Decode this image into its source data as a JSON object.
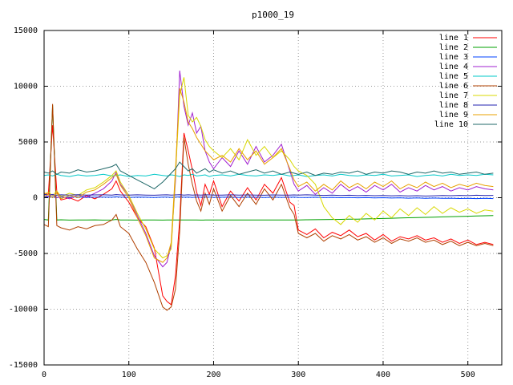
{
  "chart_data": {
    "type": "line",
    "title": "p1000_19",
    "xlabel": "",
    "ylabel": "",
    "xlim": [
      0,
      540
    ],
    "ylim": [
      -15000,
      15000
    ],
    "xticks": [
      0,
      100,
      200,
      300,
      400,
      500
    ],
    "yticks": [
      -15000,
      -10000,
      -5000,
      0,
      5000,
      10000,
      15000
    ],
    "grid": true,
    "legend_position": "top-right-inside",
    "x": [
      0,
      5,
      10,
      15,
      20,
      30,
      40,
      50,
      60,
      70,
      80,
      85,
      90,
      100,
      110,
      120,
      130,
      140,
      145,
      150,
      155,
      160,
      165,
      170,
      175,
      180,
      185,
      190,
      195,
      200,
      210,
      220,
      230,
      240,
      250,
      260,
      270,
      280,
      290,
      295,
      300,
      310,
      320,
      330,
      340,
      350,
      360,
      370,
      380,
      390,
      400,
      410,
      420,
      430,
      440,
      450,
      460,
      470,
      480,
      490,
      500,
      510,
      520,
      530
    ],
    "series": [
      {
        "name": "line 1",
        "color": "#ff0000",
        "values": [
          400,
          300,
          6500,
          500,
          -200,
          0,
          -300,
          200,
          -100,
          300,
          800,
          1500,
          600,
          -400,
          -1800,
          -2600,
          -4500,
          -8800,
          -9300,
          -9600,
          -7000,
          -2000,
          5800,
          4200,
          2500,
          500,
          -700,
          1200,
          300,
          1500,
          -800,
          600,
          -300,
          900,
          -200,
          1200,
          400,
          1800,
          -400,
          -700,
          -2900,
          -3300,
          -2800,
          -3600,
          -3100,
          -3400,
          -2900,
          -3500,
          -3200,
          -3800,
          -3300,
          -3900,
          -3500,
          -3700,
          -3400,
          -3800,
          -3600,
          -4000,
          -3700,
          -4100,
          -3800,
          -4200,
          -4000,
          -4200
        ]
      },
      {
        "name": "line 2",
        "color": "#00a000",
        "values": [
          -1950,
          -2000,
          8300,
          -2000,
          -1980,
          -2010,
          -1990,
          -2000,
          -1985,
          -2005,
          -1995,
          -1950,
          -2000,
          -1990,
          -2010,
          -2000,
          -1995,
          -2005,
          -2000,
          -1990,
          -2000,
          -1995,
          -2000,
          -1990,
          -2000,
          -1995,
          -2005,
          -2000,
          -1990,
          -2000,
          -1995,
          -2000,
          -1990,
          -2000,
          -1995,
          -2000,
          -1990,
          -2000,
          -1995,
          -2000,
          -1990,
          -1980,
          -1970,
          -1960,
          -1950,
          -1940,
          -1930,
          -1920,
          -1900,
          -1880,
          -1860,
          -1840,
          -1820,
          -1800,
          -1780,
          -1760,
          -1740,
          -1720,
          -1700,
          -1680,
          -1660,
          -1640,
          -1620,
          -1600
        ]
      },
      {
        "name": "line 3",
        "color": "#0040ff",
        "values": [
          100,
          50,
          80,
          20,
          60,
          40,
          70,
          30,
          50,
          60,
          40,
          80,
          50,
          30,
          60,
          40,
          20,
          50,
          60,
          30,
          50,
          70,
          40,
          60,
          30,
          50,
          40,
          60,
          50,
          30,
          40,
          60,
          30,
          50,
          40,
          20,
          50,
          30,
          40,
          50,
          30,
          20,
          40,
          10,
          30,
          0,
          20,
          -10,
          10,
          -20,
          0,
          -30,
          -10,
          -40,
          -20,
          -50,
          -30,
          -60,
          -40,
          -70,
          -50,
          -80,
          -60,
          -80
        ]
      },
      {
        "name": "line 4",
        "color": "#a020d0",
        "values": [
          200,
          100,
          300,
          0,
          150,
          -100,
          250,
          50,
          400,
          800,
          1500,
          2300,
          1200,
          200,
          -1600,
          -3200,
          -5200,
          -6200,
          -5800,
          -4200,
          1500,
          11400,
          8200,
          6500,
          7600,
          5800,
          6400,
          4200,
          3200,
          2600,
          3600,
          2800,
          4200,
          3000,
          4600,
          3200,
          3800,
          4800,
          2400,
          1200,
          600,
          1100,
          300,
          900,
          400,
          1200,
          600,
          1000,
          500,
          1100,
          700,
          1200,
          500,
          900,
          600,
          1100,
          700,
          1000,
          600,
          900,
          700,
          1000,
          800,
          700
        ]
      },
      {
        "name": "line 5",
        "color": "#00c8c8",
        "values": [
          2000,
          2050,
          1950,
          2100,
          2000,
          1900,
          2050,
          1950,
          2000,
          2100,
          1950,
          2000,
          2050,
          1900,
          2000,
          1950,
          2100,
          2000,
          1950,
          2050,
          2000,
          1900,
          2050,
          2000,
          2100,
          1950,
          2000,
          2050,
          1900,
          2000,
          2050,
          1950,
          2100,
          2000,
          1950,
          2050,
          2000,
          2100,
          1950,
          2000,
          2050,
          1900,
          2000,
          2050,
          1950,
          2100,
          2000,
          1950,
          2050,
          2000,
          2100,
          1950,
          2000,
          2050,
          1900,
          2000,
          2050,
          1950,
          2100,
          2000,
          2050,
          2000,
          2100,
          2050
        ]
      },
      {
        "name": "line 6",
        "color": "#b04000",
        "values": [
          -2400,
          -2600,
          8400,
          -2500,
          -2700,
          -2900,
          -2600,
          -2800,
          -2500,
          -2400,
          -2000,
          -1500,
          -2600,
          -3200,
          -4600,
          -5800,
          -7600,
          -9800,
          -10100,
          -9800,
          -8200,
          -3000,
          5400,
          3000,
          1200,
          -300,
          -1200,
          400,
          -600,
          800,
          -1200,
          200,
          -800,
          400,
          -600,
          800,
          -200,
          1200,
          -900,
          -1500,
          -3200,
          -3600,
          -3200,
          -3900,
          -3400,
          -3700,
          -3300,
          -3800,
          -3500,
          -4000,
          -3600,
          -4100,
          -3700,
          -3900,
          -3600,
          -4000,
          -3800,
          -4200,
          -3900,
          -4300,
          -4000,
          -4300,
          -4100,
          -4300
        ]
      },
      {
        "name": "line 7",
        "color": "#d8d800",
        "values": [
          300,
          500,
          200,
          600,
          100,
          400,
          200,
          700,
          900,
          1400,
          2000,
          2400,
          1400,
          200,
          -1400,
          -2800,
          -4600,
          -5400,
          -5200,
          -4600,
          2000,
          9200,
          10800,
          7400,
          6800,
          7200,
          6400,
          5200,
          4600,
          4200,
          3600,
          4400,
          3400,
          5200,
          3800,
          4600,
          3600,
          4200,
          3400,
          2800,
          2400,
          2000,
          1200,
          -800,
          -1800,
          -2400,
          -1600,
          -2200,
          -1400,
          -2000,
          -1200,
          -1800,
          -1000,
          -1600,
          -900,
          -1500,
          -800,
          -1400,
          -900,
          -1300,
          -1000,
          -1400,
          -1100,
          -1200
        ]
      },
      {
        "name": "line 8",
        "color": "#2020b0",
        "values": [
          300,
          250,
          280,
          220,
          260,
          240,
          270,
          230,
          250,
          260,
          240,
          280,
          250,
          230,
          260,
          240,
          220,
          250,
          260,
          230,
          250,
          270,
          240,
          260,
          230,
          250,
          240,
          260,
          250,
          230,
          240,
          260,
          230,
          250,
          240,
          220,
          250,
          230,
          240,
          250,
          230,
          260,
          240,
          210,
          230,
          200,
          220,
          190,
          210,
          180,
          200,
          170,
          190,
          160,
          180,
          150,
          170,
          200,
          180,
          210,
          190,
          220,
          200,
          210
        ]
      },
      {
        "name": "line 9",
        "color": "#e8a000",
        "values": [
          100,
          300,
          0,
          400,
          -100,
          200,
          0,
          500,
          700,
          1200,
          1800,
          2100,
          1100,
          0,
          -1800,
          -3400,
          -5400,
          -5800,
          -5400,
          -4000,
          2500,
          9800,
          8600,
          6800,
          6200,
          5400,
          4800,
          4200,
          3800,
          3400,
          3800,
          3200,
          4400,
          3400,
          4200,
          3000,
          3600,
          4400,
          2600,
          1600,
          1000,
          1400,
          600,
          1200,
          700,
          1500,
          900,
          1300,
          800,
          1400,
          1000,
          1500,
          800,
          1200,
          900,
          1400,
          1000,
          1300,
          900,
          1200,
          1000,
          1300,
          1100,
          1000
        ]
      },
      {
        "name": "line 10",
        "color": "#206868",
        "values": [
          2300,
          2200,
          2400,
          2100,
          2300,
          2200,
          2500,
          2300,
          2400,
          2600,
          2800,
          3000,
          2400,
          2000,
          1600,
          1200,
          800,
          1400,
          1800,
          2200,
          2600,
          3200,
          2800,
          2400,
          2600,
          2200,
          2400,
          2600,
          2300,
          2500,
          2200,
          2400,
          2100,
          2300,
          2500,
          2200,
          2400,
          2100,
          2300,
          2200,
          2100,
          2300,
          2000,
          2200,
          2100,
          2300,
          2200,
          2400,
          2100,
          2300,
          2200,
          2400,
          2300,
          2100,
          2300,
          2200,
          2400,
          2200,
          2300,
          2100,
          2200,
          2300,
          2100,
          2200
        ]
      }
    ]
  }
}
